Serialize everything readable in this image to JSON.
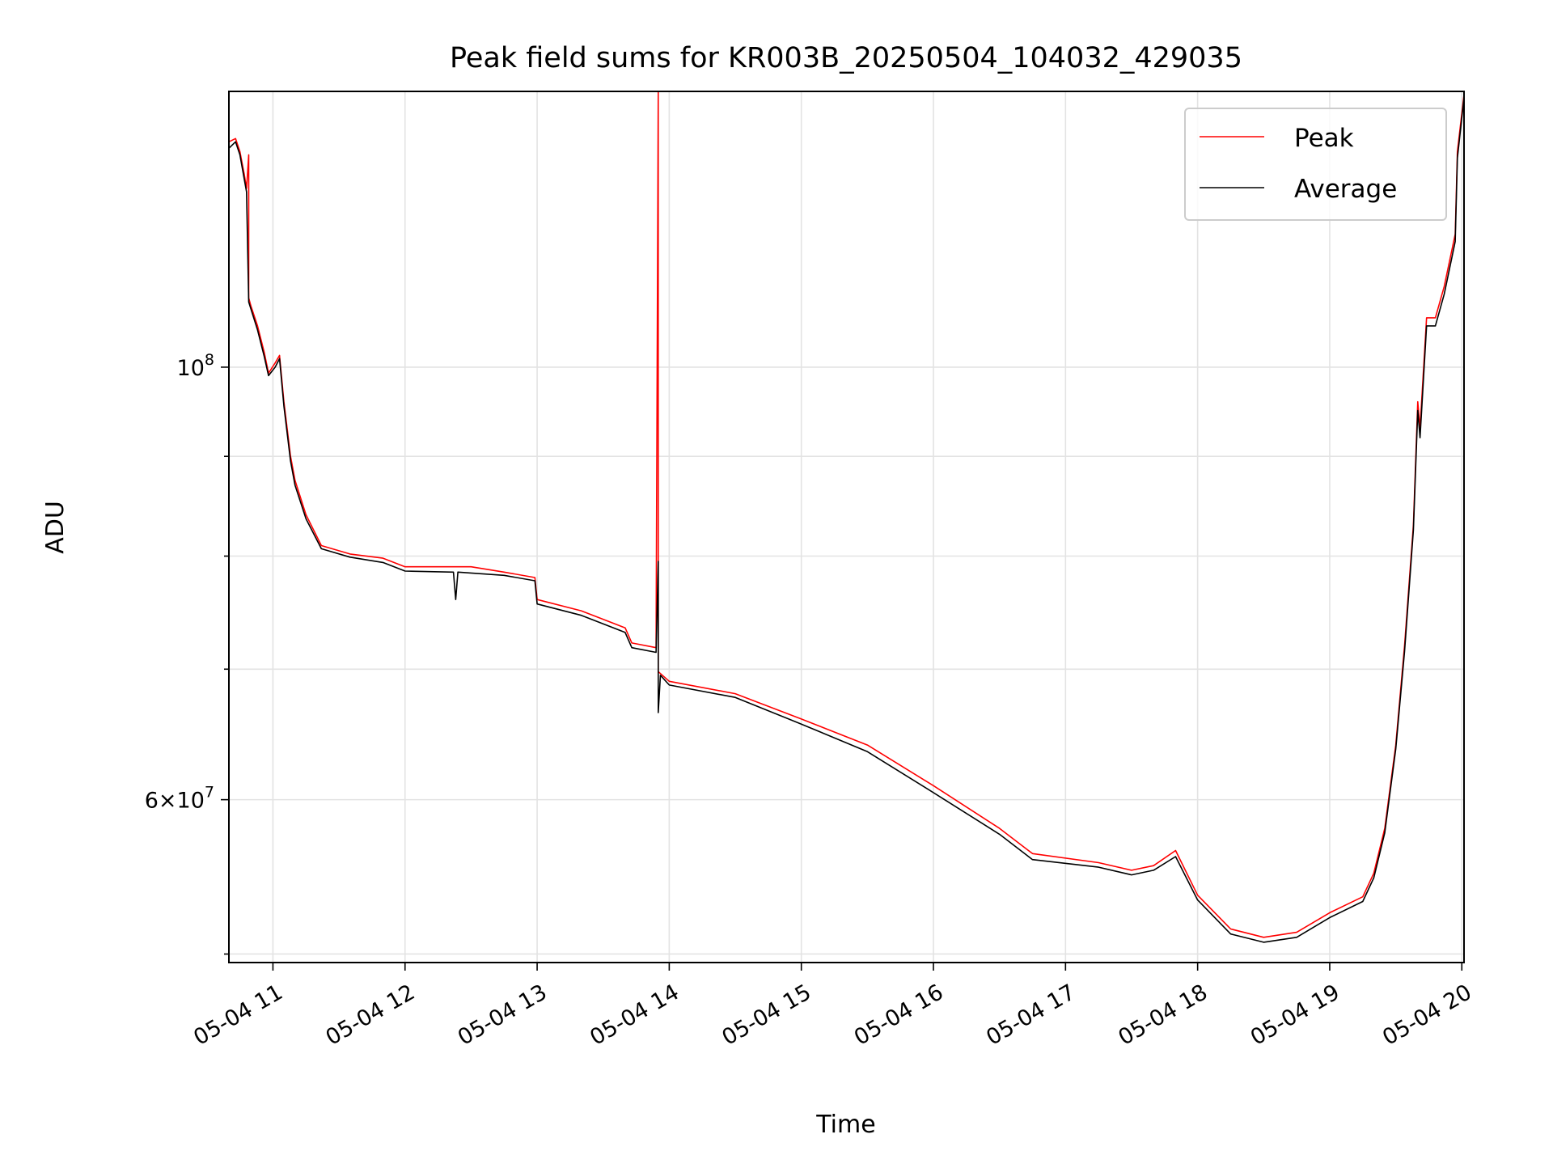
{
  "chart_data": {
    "type": "line",
    "title": "Peak field sums for KR003B_20250504_104032_429035",
    "xlabel": "Time",
    "ylabel": "ADU",
    "y_scale": "log",
    "grid": true,
    "legend_placement": "top-right",
    "xlim": [
      "2025-05-04 10:40",
      "2025-05-04 20:01"
    ],
    "ylim": [
      49500000,
      138500000
    ],
    "x_ticks": [
      {
        "value": "2025-05-04 11:00",
        "label": "05-04 11"
      },
      {
        "value": "2025-05-04 12:00",
        "label": "05-04 12"
      },
      {
        "value": "2025-05-04 13:00",
        "label": "05-04 13"
      },
      {
        "value": "2025-05-04 14:00",
        "label": "05-04 14"
      },
      {
        "value": "2025-05-04 15:00",
        "label": "05-04 15"
      },
      {
        "value": "2025-05-04 16:00",
        "label": "05-04 16"
      },
      {
        "value": "2025-05-04 17:00",
        "label": "05-04 17"
      },
      {
        "value": "2025-05-04 18:00",
        "label": "05-04 18"
      },
      {
        "value": "2025-05-04 19:00",
        "label": "05-04 19"
      },
      {
        "value": "2025-05-04 20:00",
        "label": "05-04 20"
      }
    ],
    "y_major_ticks": [
      {
        "value": 100000000,
        "base": "10",
        "exp": "8",
        "mantissa": ""
      },
      {
        "value": 60000000,
        "base": "10",
        "exp": "7",
        "mantissa": "6×"
      }
    ],
    "y_minor_ticks": [
      50000000,
      70000000,
      80000000,
      90000000
    ],
    "series": [
      {
        "name": "Peak",
        "color": "#ff0000",
        "points": [
          [
            "2025-05-04 10:40",
            130500000
          ],
          [
            "2025-05-04 10:43",
            131000000
          ],
          [
            "2025-05-04 10:45",
            129000000
          ],
          [
            "2025-05-04 10:47",
            125500000
          ],
          [
            "2025-05-04 10:48",
            123500000
          ],
          [
            "2025-05-04 10:49",
            128500000
          ],
          [
            "2025-05-04 10:49",
            108500000
          ],
          [
            "2025-05-04 10:50",
            107500000
          ],
          [
            "2025-05-04 10:53",
            105000000
          ],
          [
            "2025-05-04 10:56",
            101800000
          ],
          [
            "2025-05-04 10:58",
            99300000
          ],
          [
            "2025-05-04 11:01",
            100500000
          ],
          [
            "2025-05-04 11:03",
            101400000
          ],
          [
            "2025-05-04 11:05",
            96000000
          ],
          [
            "2025-05-04 11:08",
            90000000
          ],
          [
            "2025-05-04 11:10",
            87500000
          ],
          [
            "2025-05-04 11:15",
            84000000
          ],
          [
            "2025-05-04 11:22",
            81000000
          ],
          [
            "2025-05-04 11:35",
            80200000
          ],
          [
            "2025-05-04 11:50",
            79800000
          ],
          [
            "2025-05-04 12:00",
            79000000
          ],
          [
            "2025-05-04 12:30",
            79000000
          ],
          [
            "2025-05-04 12:45",
            78500000
          ],
          [
            "2025-05-04 12:59",
            78000000
          ],
          [
            "2025-05-04 13:00",
            76000000
          ],
          [
            "2025-05-04 13:20",
            75000000
          ],
          [
            "2025-05-04 13:40",
            73500000
          ],
          [
            "2025-05-04 13:43",
            72200000
          ],
          [
            "2025-05-04 13:54",
            71800000
          ],
          [
            "2025-05-04 13:55",
            138500000
          ],
          [
            "2025-05-04 13:55",
            69800000
          ],
          [
            "2025-05-04 14:00",
            69000000
          ],
          [
            "2025-05-04 14:30",
            68000000
          ],
          [
            "2025-05-04 15:00",
            66000000
          ],
          [
            "2025-05-04 15:30",
            64000000
          ],
          [
            "2025-05-04 16:00",
            61000000
          ],
          [
            "2025-05-04 16:30",
            58000000
          ],
          [
            "2025-05-04 16:45",
            56300000
          ],
          [
            "2025-05-04 17:15",
            55700000
          ],
          [
            "2025-05-04 17:30",
            55200000
          ],
          [
            "2025-05-04 17:40",
            55500000
          ],
          [
            "2025-05-04 17:50",
            56500000
          ],
          [
            "2025-05-04 18:00",
            53600000
          ],
          [
            "2025-05-04 18:15",
            51500000
          ],
          [
            "2025-05-04 18:30",
            51000000
          ],
          [
            "2025-05-04 18:45",
            51300000
          ],
          [
            "2025-05-04 19:00",
            52500000
          ],
          [
            "2025-05-04 19:15",
            53500000
          ],
          [
            "2025-05-04 19:20",
            55000000
          ],
          [
            "2025-05-04 19:25",
            58000000
          ],
          [
            "2025-05-04 19:30",
            64000000
          ],
          [
            "2025-05-04 19:34",
            72000000
          ],
          [
            "2025-05-04 19:38",
            83000000
          ],
          [
            "2025-05-04 19:40",
            96000000
          ],
          [
            "2025-05-04 19:41",
            93000000
          ],
          [
            "2025-05-04 19:44",
            106000000
          ],
          [
            "2025-05-04 19:48",
            106000000
          ],
          [
            "2025-05-04 19:52",
            110000000
          ],
          [
            "2025-05-04 19:57",
            117000000
          ],
          [
            "2025-05-04 19:58",
            129000000
          ],
          [
            "2025-05-04 20:01",
            138000000
          ]
        ]
      },
      {
        "name": "Average",
        "color": "#000000",
        "points": [
          [
            "2025-05-04 10:40",
            129500000
          ],
          [
            "2025-05-04 10:43",
            130500000
          ],
          [
            "2025-05-04 10:45",
            128500000
          ],
          [
            "2025-05-04 10:48",
            123000000
          ],
          [
            "2025-05-04 10:49",
            108000000
          ],
          [
            "2025-05-04 10:53",
            104500000
          ],
          [
            "2025-05-04 10:56",
            101300000
          ],
          [
            "2025-05-04 10:58",
            99000000
          ],
          [
            "2025-05-04 11:01",
            100000000
          ],
          [
            "2025-05-04 11:03",
            101000000
          ],
          [
            "2025-05-04 11:05",
            95500000
          ],
          [
            "2025-05-04 11:08",
            89500000
          ],
          [
            "2025-05-04 11:10",
            87000000
          ],
          [
            "2025-05-04 11:15",
            83600000
          ],
          [
            "2025-05-04 11:22",
            80700000
          ],
          [
            "2025-05-04 11:35",
            79900000
          ],
          [
            "2025-05-04 11:50",
            79400000
          ],
          [
            "2025-05-04 12:00",
            78600000
          ],
          [
            "2025-05-04 12:22",
            78500000
          ],
          [
            "2025-05-04 12:23",
            76000000
          ],
          [
            "2025-05-04 12:24",
            78500000
          ],
          [
            "2025-05-04 12:45",
            78200000
          ],
          [
            "2025-05-04 12:59",
            77700000
          ],
          [
            "2025-05-04 13:00",
            75600000
          ],
          [
            "2025-05-04 13:20",
            74600000
          ],
          [
            "2025-05-04 13:40",
            73100000
          ],
          [
            "2025-05-04 13:43",
            71800000
          ],
          [
            "2025-05-04 13:54",
            71400000
          ],
          [
            "2025-05-04 13:55",
            79500000
          ],
          [
            "2025-05-04 13:55",
            66500000
          ],
          [
            "2025-05-04 13:56",
            69500000
          ],
          [
            "2025-05-04 14:00",
            68700000
          ],
          [
            "2025-05-04 14:30",
            67700000
          ],
          [
            "2025-05-04 15:00",
            65600000
          ],
          [
            "2025-05-04 15:30",
            63500000
          ],
          [
            "2025-05-04 16:00",
            60500000
          ],
          [
            "2025-05-04 16:30",
            57600000
          ],
          [
            "2025-05-04 16:45",
            55900000
          ],
          [
            "2025-05-04 17:15",
            55400000
          ],
          [
            "2025-05-04 17:30",
            54900000
          ],
          [
            "2025-05-04 17:40",
            55200000
          ],
          [
            "2025-05-04 17:50",
            56100000
          ],
          [
            "2025-05-04 18:00",
            53300000
          ],
          [
            "2025-05-04 18:15",
            51200000
          ],
          [
            "2025-05-04 18:30",
            50700000
          ],
          [
            "2025-05-04 18:45",
            51000000
          ],
          [
            "2025-05-04 19:00",
            52200000
          ],
          [
            "2025-05-04 19:15",
            53200000
          ],
          [
            "2025-05-04 19:20",
            54700000
          ],
          [
            "2025-05-04 19:25",
            57700000
          ],
          [
            "2025-05-04 19:30",
            63700000
          ],
          [
            "2025-05-04 19:34",
            71500000
          ],
          [
            "2025-05-04 19:38",
            82500000
          ],
          [
            "2025-05-04 19:40",
            95000000
          ],
          [
            "2025-05-04 19:41",
            92000000
          ],
          [
            "2025-05-04 19:44",
            105000000
          ],
          [
            "2025-05-04 19:48",
            105000000
          ],
          [
            "2025-05-04 19:52",
            109000000
          ],
          [
            "2025-05-04 19:57",
            116000000
          ],
          [
            "2025-05-04 19:58",
            128000000
          ],
          [
            "2025-05-04 20:01",
            137500000
          ]
        ]
      }
    ]
  }
}
